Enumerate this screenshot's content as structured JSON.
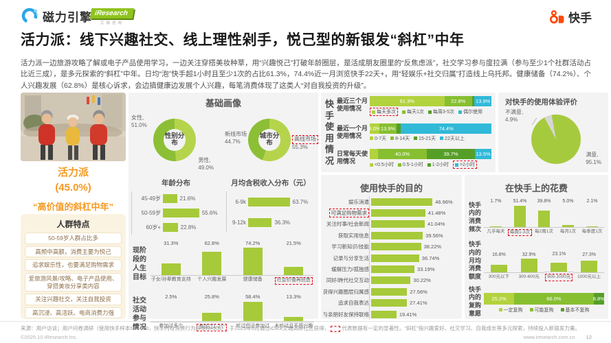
{
  "header": {
    "brand_left": "磁力引擎",
    "iresearch": "iResearch",
    "iresearch_sub": "艾瑞咨询",
    "brand_right": "快手"
  },
  "title": "活力派：线下兴趣社交、线上理性剁手，悦己型的新银发“斜杠”中年",
  "intro": "活力派一边旅游攻略了解或电子产品使用学习，一边关注穿搭美妆种草，用“兴趣悦己”打破年龄圈层，是活成朋友圈里的“反焦虑派”，社交学习参与度拉满（参与至少1个社群活动占比近三成），是多元探索的“斜杠”中年。日均“泡”快手超1小时且至少1次的占比61.3%，74.4%近一月浏览快手22天+，用“轻娱乐+社交归属”打造线上乌托邦。健康储备（74.2%）、个人兴趣发展（62.8%）是核心诉求，会边搞健康边发展个人兴趣，每笔消费体现了这类人“对自我投资的升级”。",
  "left_panel": {
    "group_name": "活力派",
    "group_share": "(45.0%)",
    "group_tagline": "“高价值的斜杠中年”",
    "traits_title": "人群特点",
    "traits": [
      "50-59岁人群占比多",
      "高频中高额，消费主要为悦己",
      "追求娱乐性，也要满足购物需求",
      "爱旅游风景/攻略、电子产品使用、穿搭美妆分享类内容",
      "关注兴趣社交，关注自我投资",
      "高沉浸、高活跃、电商消费力强"
    ]
  },
  "panels": {
    "basic": {
      "title": "基础画像"
    },
    "usage": {
      "side_label": "快手使用情况"
    },
    "spend": {
      "title": "在快手上的花费"
    }
  },
  "chart_data": [
    {
      "id": "gender",
      "type": "pie",
      "title": "性别分布",
      "slices": [
        {
          "label": "女性",
          "value": 51.0
        },
        {
          "label": "男性",
          "value": 49.0
        }
      ]
    },
    {
      "id": "city",
      "type": "pie",
      "title": "城市分布",
      "slices": [
        {
          "label": "新线市场",
          "value": 44.7
        },
        {
          "label": "高线市场",
          "value": 55.3,
          "highlight": true
        }
      ]
    },
    {
      "id": "age",
      "type": "bar",
      "orientation": "horizontal",
      "title": "年龄分布",
      "points": [
        {
          "label": "45-49岁",
          "value": 21.6
        },
        {
          "label": "50-59岁",
          "value": 55.6
        },
        {
          "label": "60岁+",
          "value": 22.8
        }
      ]
    },
    {
      "id": "income",
      "type": "bar",
      "orientation": "horizontal",
      "title": "月均含税收入分布（元）",
      "points": [
        {
          "label": "6-9k",
          "value": 63.7
        },
        {
          "label": "9-12k",
          "value": 36.3
        }
      ]
    },
    {
      "id": "life_goals",
      "type": "bar",
      "orientation": "vertical",
      "title": "现阶段的人生目标",
      "points": [
        {
          "label": "子女/孙辈教育支持",
          "value": 31.3
        },
        {
          "label": "个人兴趣发展",
          "value": 62.8
        },
        {
          "label": "健康储备",
          "value": 74.2
        },
        {
          "label": "社会价值再创造",
          "value": 21.5,
          "highlight": true
        }
      ]
    },
    {
      "id": "social_activity",
      "type": "bar",
      "orientation": "vertical",
      "title": "社交活动参与情况",
      "points": [
        {
          "label": "参加过多个",
          "value": 2.5
        },
        {
          "label": "参加过1-2个",
          "value": 25.8,
          "highlight": true
        },
        {
          "label": "听过但没参加过",
          "value": 58.4
        },
        {
          "label": "未听过且不感兴趣",
          "value": 13.3
        }
      ]
    },
    {
      "id": "usage_recent_3m",
      "type": "stacked_bar",
      "title": "最近三个月使用情况",
      "segments": [
        {
          "label": "每天多次",
          "value": 61.3,
          "labeled": true,
          "legend_highlight": true
        },
        {
          "label": "每天1次",
          "value": 22.8,
          "labeled": true
        },
        {
          "label": "每周3-5次",
          "value": 2.0,
          "labeled": false
        },
        {
          "label": "偶尔使用",
          "value": 13.9,
          "labeled": true
        }
      ]
    },
    {
      "id": "usage_recent_1m",
      "type": "stacked_bar",
      "title": "最近一个月使用情况",
      "segments": [
        {
          "label": "0-7天",
          "value": 8.0,
          "labeled": true
        },
        {
          "label": "8-14天",
          "value": 13.9,
          "labeled": true
        },
        {
          "label": "15-21天",
          "value": 3.7,
          "labeled": false
        },
        {
          "label": "22天以上",
          "value": 74.4,
          "labeled": true
        }
      ]
    },
    {
      "id": "usage_daily",
      "type": "stacked_bar",
      "title": "日常每天使用情况",
      "segments": [
        {
          "label": "<0.5小时",
          "value": 6.8,
          "labeled": false
        },
        {
          "label": "0.5-1小时",
          "value": 40.0,
          "labeled": true
        },
        {
          "label": "1-2小时",
          "value": 39.7,
          "labeled": true
        },
        {
          "label": ">2小时",
          "value": 13.5,
          "labeled": true,
          "legend_highlight": true
        }
      ]
    },
    {
      "id": "experience",
      "type": "pie",
      "title": "对快手的使用体验评价",
      "slices": [
        {
          "label": "满意",
          "value": 95.1
        },
        {
          "label": "不满意",
          "value": 4.9
        }
      ]
    },
    {
      "id": "purpose",
      "type": "bar",
      "orientation": "horizontal",
      "title": "使用快手的目的",
      "points": [
        {
          "label": "娱乐消遣",
          "value": 46.96
        },
        {
          "label": "可满足购物需求",
          "value": 41.48,
          "highlight": true
        },
        {
          "label": "关注时事/社会新闻",
          "value": 41.04
        },
        {
          "label": "获取实用信息",
          "value": 39.56
        },
        {
          "label": "学习新知识/技能",
          "value": 38.22
        },
        {
          "label": "记录与分享生活",
          "value": 36.74
        },
        {
          "label": "缓解压力/孤独感",
          "value": 33.19
        },
        {
          "label": "同好/跨代社交互动",
          "value": 30.22
        },
        {
          "label": "获得兴趣圈层归属感",
          "value": 27.56
        },
        {
          "label": "追求自我表达",
          "value": 27.41
        },
        {
          "label": "与亲朋好友保持联络",
          "value": 19.41
        }
      ]
    },
    {
      "id": "spend_frequency",
      "type": "bar",
      "orientation": "vertical",
      "title": "快手内的消费频次",
      "points": [
        {
          "label": "几乎每天",
          "value": 1.7
        },
        {
          "label": "每周1-3次",
          "value": 51.4,
          "highlight": true
        },
        {
          "label": "每2周1次",
          "value": 39.8
        },
        {
          "label": "每月1次",
          "value": 5.0
        },
        {
          "label": "每季度1次",
          "value": 2.1
        }
      ]
    },
    {
      "id": "spend_amount",
      "type": "bar",
      "orientation": "vertical",
      "title": "快手内的月均消费额度",
      "points": [
        {
          "label": "300元以下",
          "value": 16.8
        },
        {
          "label": "300-600元",
          "value": 32.9
        },
        {
          "label": "600-1000元",
          "value": 23.1,
          "highlight": true
        },
        {
          "label": "1000元以上",
          "value": 27.3
        }
      ]
    },
    {
      "id": "repurchase",
      "type": "stacked_bar",
      "title": "快手内的复购意愿",
      "segments": [
        {
          "label": "一定复购",
          "value": 25.2,
          "labeled": true
        },
        {
          "label": "可能复购",
          "value": 66.0,
          "labeled": true
        },
        {
          "label": "基本不复购",
          "value": 8.8,
          "labeled": true
        }
      ]
    }
  ],
  "colors": {
    "bar": "#a6ca3a",
    "donut_dark": "#8cbf35",
    "donut_light": "#b5d44c",
    "pie_green": "#a6ca3e",
    "gray_slice": "#d6d6d6",
    "seg1": "#b2d23e",
    "seg2": "#87bf30",
    "seg3": "#569f27",
    "seg4": "#31b9d8",
    "orange": "#f59a23",
    "red": "#e60012",
    "kuaishou": "#ff4906"
  },
  "footer": {
    "source": "来源：用户访谈；用户问卷调研（使用快手样本N=1500，快手内有消费行为样本N=908），于2025年6月通过iClick艾瑞调研社区获得，",
    "source_suffix": "代表数据有一定的显著性。“斜杠”指兴趣爱好、社交学习、自我成长等多元探索，持续投入新银发力量。",
    "copyright": "©2025.10 iResearch Inc.",
    "site": "www.iresearch.com.cn",
    "page": "12"
  }
}
